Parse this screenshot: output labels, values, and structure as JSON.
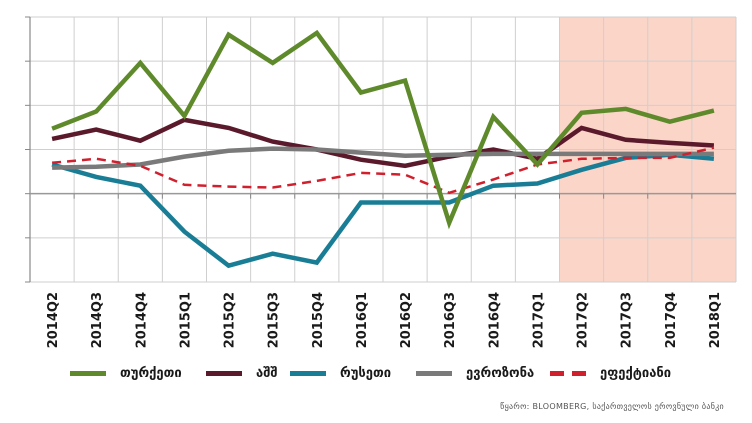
{
  "chart_data": {
    "type": "line",
    "title": "",
    "xlabel": "",
    "ylabel": "",
    "ylim": [
      -2,
      4
    ],
    "yticks": [
      -2,
      -1,
      0,
      1,
      2,
      3,
      4
    ],
    "ytick_labels_visible": false,
    "grid": true,
    "categories": [
      "2014Q2",
      "2014Q3",
      "2014Q4",
      "2015Q1",
      "2015Q2",
      "2015Q3",
      "2015Q4",
      "2016Q1",
      "2016Q2",
      "2016Q3",
      "2016Q4",
      "2017Q1",
      "2017Q2",
      "2017Q3",
      "2017Q4",
      "2018Q1"
    ],
    "shaded_region": {
      "from": "2017Q2",
      "to": "2018Q1",
      "color": "#fbd5c8",
      "meaning": "forecast"
    },
    "series": [
      {
        "name": "თურქეთი",
        "color": "#5e8a2b",
        "style": "solid",
        "values": [
          1.47,
          1.86,
          2.96,
          1.76,
          3.6,
          2.96,
          3.64,
          2.29,
          2.56,
          -0.66,
          1.74,
          0.66,
          1.83,
          1.92,
          1.63,
          1.88
        ]
      },
      {
        "name": "აშშ",
        "color": "#5a1a2c",
        "style": "solid",
        "values": [
          1.24,
          1.45,
          1.2,
          1.67,
          1.49,
          1.18,
          1.0,
          0.77,
          0.63,
          0.84,
          1.0,
          0.79,
          1.49,
          1.22,
          1.15,
          1.09
        ]
      },
      {
        "name": "რუსეთი",
        "color": "#1a7d96",
        "style": "solid",
        "values": [
          0.66,
          0.38,
          0.18,
          -0.86,
          -1.63,
          -1.36,
          -1.56,
          -0.2,
          -0.2,
          -0.2,
          0.18,
          0.23,
          0.54,
          0.81,
          0.88,
          0.79
        ]
      },
      {
        "name": "ევროზონა",
        "color": "#7a7a7a",
        "style": "solid",
        "values": [
          0.59,
          0.61,
          0.66,
          0.84,
          0.97,
          1.02,
          1.0,
          0.93,
          0.86,
          0.88,
          0.9,
          0.9,
          0.9,
          0.9,
          0.9,
          0.9
        ]
      },
      {
        "name": "ეფექტიანი",
        "color": "#d0202e",
        "style": "dashed",
        "values": [
          0.7,
          0.79,
          0.63,
          0.2,
          0.16,
          0.14,
          0.29,
          0.47,
          0.43,
          0.02,
          0.32,
          0.66,
          0.79,
          0.81,
          0.81,
          1.04
        ]
      }
    ],
    "legend_position": "bottom"
  },
  "source": "წყარო: BLOOMBERG, საქართველოს ეროვნული ბანკი"
}
